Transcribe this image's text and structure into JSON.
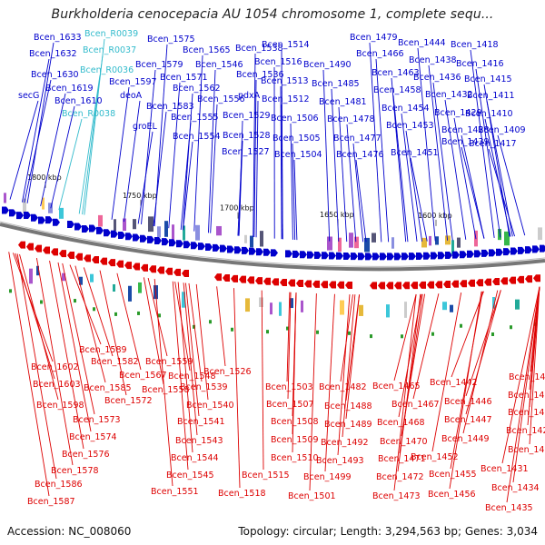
{
  "title": "Burkholderia cenocepacia AU 1054 chromosome 1, complete sequ...",
  "footer": {
    "accession": "Accession: NC_008060",
    "summary": "Topology: circular; Length: 3,294,563 bp; Genes: 3,034"
  },
  "scale_labels": [
    "1800 kbp",
    "1750 kbp",
    "1700 kbp",
    "1650 kbp",
    "1600 kbp"
  ],
  "colors": {
    "forward_gene": "#0000cc",
    "reverse_gene": "#dd0000",
    "rna_gene": "#33bbcc",
    "backbone": "#777777"
  },
  "top_labels": [
    {
      "text": "Bcen_1633",
      "kind": "gene"
    },
    {
      "text": "Bcen_R0039",
      "kind": "rna"
    },
    {
      "text": "Bcen_1575",
      "kind": "gene"
    },
    {
      "text": "Bcen_1538",
      "kind": "gene"
    },
    {
      "text": "Bcen_1514",
      "kind": "gene"
    },
    {
      "text": "Bcen_1479",
      "kind": "gene"
    },
    {
      "text": "Bcen_1444",
      "kind": "gene"
    },
    {
      "text": "Bcen_1418",
      "kind": "gene"
    },
    {
      "text": "Bcen_1632",
      "kind": "gene"
    },
    {
      "text": "Bcen_R0037",
      "kind": "rna"
    },
    {
      "text": "Bcen_1565",
      "kind": "gene"
    },
    {
      "text": "Bcen_1579",
      "kind": "gene"
    },
    {
      "text": "Bcen_1546",
      "kind": "gene"
    },
    {
      "text": "Bcen_1516",
      "kind": "gene"
    },
    {
      "text": "Bcen_1490",
      "kind": "gene"
    },
    {
      "text": "Bcen_1466",
      "kind": "gene"
    },
    {
      "text": "Bcen_1438",
      "kind": "gene"
    },
    {
      "text": "Bcen_1416",
      "kind": "gene"
    },
    {
      "text": "Bcen_1630",
      "kind": "gene"
    },
    {
      "text": "Bcen_R0036",
      "kind": "rna"
    },
    {
      "text": "Bcen_1571",
      "kind": "gene"
    },
    {
      "text": "Bcen_1536",
      "kind": "gene"
    },
    {
      "text": "Bcen_1513",
      "kind": "gene"
    },
    {
      "text": "Bcen_1485",
      "kind": "gene"
    },
    {
      "text": "Bcen_1463",
      "kind": "gene"
    },
    {
      "text": "Bcen_1436",
      "kind": "gene"
    },
    {
      "text": "Bcen_1415",
      "kind": "gene"
    },
    {
      "text": "Bcen_1597",
      "kind": "gene"
    },
    {
      "text": "Bcen_1562",
      "kind": "gene"
    },
    {
      "text": "Bcen_1619",
      "kind": "gene"
    },
    {
      "text": "secG",
      "kind": "gene"
    },
    {
      "text": "deoA",
      "kind": "gene"
    },
    {
      "text": "Bcen_1556",
      "kind": "gene"
    },
    {
      "text": "pdxA",
      "kind": "gene"
    },
    {
      "text": "Bcen_1512",
      "kind": "gene"
    },
    {
      "text": "Bcen_1481",
      "kind": "gene"
    },
    {
      "text": "Bcen_1458",
      "kind": "gene"
    },
    {
      "text": "Bcen_1432",
      "kind": "gene"
    },
    {
      "text": "Bcen_1411",
      "kind": "gene"
    },
    {
      "text": "Bcen_1610",
      "kind": "gene"
    },
    {
      "text": "Bcen_1583",
      "kind": "gene"
    },
    {
      "text": "Bcen_1454",
      "kind": "gene"
    },
    {
      "text": "Bcen_R0038",
      "kind": "rna"
    },
    {
      "text": "Bcen_1555",
      "kind": "gene"
    },
    {
      "text": "Bcen_1529",
      "kind": "gene"
    },
    {
      "text": "Bcen_1506",
      "kind": "gene"
    },
    {
      "text": "Bcen_1478",
      "kind": "gene"
    },
    {
      "text": "Bcen_1429",
      "kind": "gene"
    },
    {
      "text": "Bcen_1410",
      "kind": "gene"
    },
    {
      "text": "groEL",
      "kind": "gene"
    },
    {
      "text": "Bcen_1453",
      "kind": "gene"
    },
    {
      "text": "Bcen_1554",
      "kind": "gene"
    },
    {
      "text": "Bcen_1528",
      "kind": "gene"
    },
    {
      "text": "Bcen_1505",
      "kind": "gene"
    },
    {
      "text": "Bcen_1477",
      "kind": "gene"
    },
    {
      "text": "Bcen_1428",
      "kind": "gene"
    },
    {
      "text": "Bcen_1409",
      "kind": "gene"
    },
    {
      "text": "Bcen_1439",
      "kind": "gene"
    },
    {
      "text": "Bcen_1417",
      "kind": "gene"
    },
    {
      "text": "Bcen_1527",
      "kind": "gene"
    },
    {
      "text": "Bcen_1504",
      "kind": "gene"
    },
    {
      "text": "Bcen_1476",
      "kind": "gene"
    },
    {
      "text": "Bcen_1451",
      "kind": "gene"
    }
  ],
  "bottom_labels": [
    "Bcen_1589",
    "Bcen_1582",
    "Bcen_1602",
    "Bcen_1567",
    "Bcen_1603",
    "Bcen_1585",
    "Bcen_1598",
    "Bcen_1572",
    "Bcen_1573",
    "Bcen_1574",
    "Bcen_1576",
    "Bcen_1578",
    "Bcen_1586",
    "Bcen_1587",
    "Bcen_1559",
    "Bcen_1548",
    "Bcen_1558",
    "Bcen_1539",
    "Bcen_1540",
    "Bcen_1541",
    "Bcen_1543",
    "Bcen_1544",
    "Bcen_1545",
    "Bcen_1551",
    "Bcen_1526",
    "Bcen_1503",
    "Bcen_1507",
    "Bcen_1508",
    "Bcen_1509",
    "Bcen_1510",
    "Bcen_1515",
    "Bcen_1518",
    "Bcen_1482",
    "Bcen_1488",
    "Bcen_1489",
    "Bcen_1492",
    "Bcen_1493",
    "Bcen_1499",
    "Bcen_1501",
    "Bcen_1465",
    "Bcen_1467",
    "Bcen_1468",
    "Bcen_1470",
    "Bcen_1471",
    "Bcen_1472",
    "Bcen_1473",
    "Bcen_1442",
    "Bcen_1446",
    "Bcen_1447",
    "Bcen_1449",
    "Bcen_1452",
    "Bcen_1455",
    "Bcen_1456",
    "Bcen_1423",
    "Bcen_1424",
    "Bcen_1425",
    "Bcen_1426",
    "Bcen_1427",
    "Bcen_1431",
    "Bcen_1434",
    "Bcen_1435"
  ]
}
